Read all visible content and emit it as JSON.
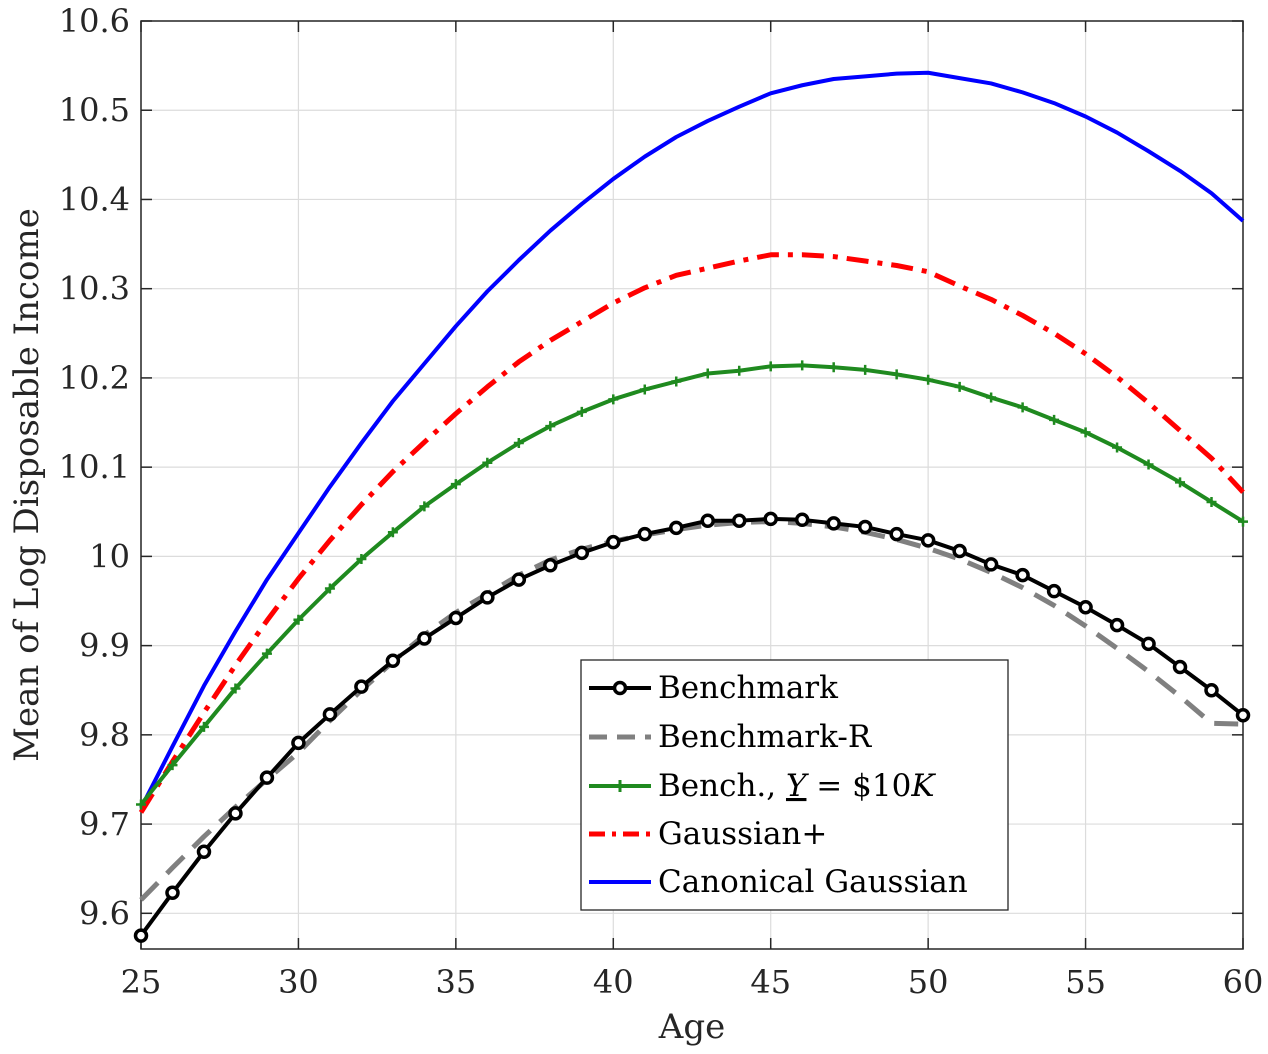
{
  "chart_data": {
    "type": "line",
    "xlabel": "Age",
    "ylabel": "Mean of Log Disposable Income",
    "xlim": [
      25,
      60
    ],
    "ylim": [
      9.56,
      10.6
    ],
    "xticks": [
      25,
      30,
      35,
      40,
      45,
      50,
      55,
      60
    ],
    "yticks": [
      9.6,
      9.7,
      9.8,
      9.9,
      10.0,
      10.1,
      10.2,
      10.3,
      10.4,
      10.5,
      10.6
    ],
    "ytick_labels": [
      "9.6",
      "9.7",
      "9.8",
      "9.9",
      "10",
      "10.1",
      "10.2",
      "10.3",
      "10.4",
      "10.5",
      "10.6"
    ],
    "grid": true,
    "legend_position": "bottom-right",
    "x": [
      25,
      26,
      27,
      28,
      29,
      30,
      31,
      32,
      33,
      34,
      35,
      36,
      37,
      38,
      39,
      40,
      41,
      42,
      43,
      44,
      45,
      46,
      47,
      48,
      49,
      50,
      51,
      52,
      53,
      54,
      55,
      56,
      57,
      58,
      59,
      60
    ],
    "series": [
      {
        "name": "Benchmark",
        "color": "#000000",
        "style": "solid-circle-markers",
        "values": [
          9.575,
          9.623,
          9.669,
          9.712,
          9.752,
          9.791,
          9.823,
          9.854,
          9.883,
          9.908,
          9.931,
          9.954,
          9.974,
          9.99,
          10.004,
          10.016,
          10.025,
          10.032,
          10.04,
          10.04,
          10.042,
          10.041,
          10.037,
          10.033,
          10.025,
          10.018,
          10.006,
          9.991,
          9.979,
          9.961,
          9.943,
          9.923,
          9.902,
          9.876,
          9.85,
          9.822
        ]
      },
      {
        "name": "Benchmark-R",
        "color": "#808080",
        "style": "dashed",
        "values": [
          9.615,
          9.651,
          9.686,
          9.719,
          9.75,
          9.78,
          9.816,
          9.85,
          9.882,
          9.912,
          9.937,
          9.958,
          9.979,
          9.996,
          10.008,
          10.017,
          10.024,
          10.03,
          10.035,
          10.038,
          10.039,
          10.037,
          10.033,
          10.027,
          10.019,
          10.009,
          9.997,
          9.982,
          9.965,
          9.945,
          9.922,
          9.897,
          9.871,
          9.843,
          9.813,
          9.812
        ]
      },
      {
        "name_parts": [
          "Bench., ",
          "Y",
          " = $10",
          "K"
        ],
        "color": "#1f8a1f",
        "style": "solid-plus-markers",
        "values": [
          9.722,
          9.766,
          9.809,
          9.852,
          9.891,
          9.929,
          9.964,
          9.997,
          10.027,
          10.056,
          10.081,
          10.105,
          10.127,
          10.146,
          10.162,
          10.176,
          10.187,
          10.196,
          10.205,
          10.208,
          10.213,
          10.214,
          10.212,
          10.209,
          10.204,
          10.198,
          10.19,
          10.178,
          10.167,
          10.153,
          10.139,
          10.122,
          10.103,
          10.083,
          10.061,
          10.039
        ]
      },
      {
        "name": "Gaussian+",
        "color": "#ff0000",
        "style": "dash-dot",
        "values": [
          9.713,
          9.77,
          9.825,
          9.878,
          9.928,
          9.975,
          10.018,
          10.058,
          10.095,
          10.128,
          10.16,
          10.19,
          10.218,
          10.242,
          10.263,
          10.284,
          10.301,
          10.315,
          10.323,
          10.331,
          10.338,
          10.338,
          10.336,
          10.331,
          10.326,
          10.319,
          10.303,
          10.288,
          10.27,
          10.25,
          10.227,
          10.201,
          10.172,
          10.141,
          10.11,
          10.072
        ]
      },
      {
        "name": "Canonical Gaussian",
        "color": "#0000ff",
        "style": "solid",
        "values": [
          9.718,
          9.787,
          9.855,
          9.916,
          9.974,
          10.026,
          10.078,
          10.127,
          10.174,
          10.216,
          10.258,
          10.297,
          10.332,
          10.365,
          10.395,
          10.423,
          10.448,
          10.47,
          10.488,
          10.504,
          10.519,
          10.528,
          10.535,
          10.538,
          10.541,
          10.542,
          10.536,
          10.53,
          10.52,
          10.508,
          10.493,
          10.475,
          10.454,
          10.432,
          10.407,
          10.376
        ]
      }
    ]
  }
}
